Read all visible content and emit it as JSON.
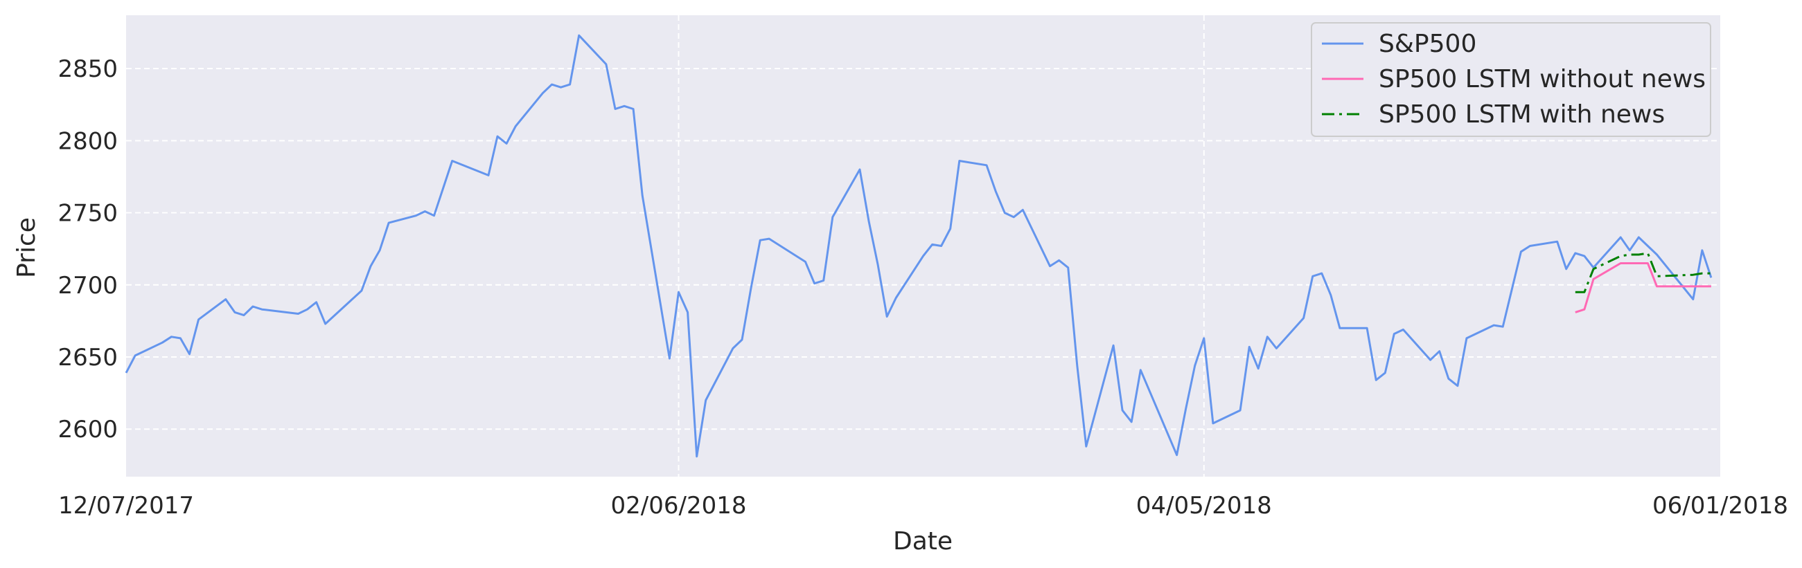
{
  "chart_data": {
    "type": "line",
    "xlabel": "Date",
    "ylabel": "Price",
    "xlim": [
      "12/07/2017",
      "06/01/2018"
    ],
    "x_ticks": [
      "12/07/2017",
      "02/06/2018",
      "04/05/2018",
      "06/01/2018"
    ],
    "ylim": [
      2567,
      2887
    ],
    "y_ticks": [
      2600,
      2650,
      2700,
      2750,
      2800,
      2850
    ],
    "grid": true,
    "legend_position": "top-right",
    "background_color": "#eaeaf2",
    "series": [
      {
        "name": "S&P500",
        "color": "#6495ed",
        "dash": "solid",
        "points": [
          [
            "12/07/2017",
            2639
          ],
          [
            "12/08/2017",
            2651
          ],
          [
            "12/11/2017",
            2660
          ],
          [
            "12/12/2017",
            2664
          ],
          [
            "12/13/2017",
            2663
          ],
          [
            "12/14/2017",
            2652
          ],
          [
            "12/15/2017",
            2676
          ],
          [
            "12/18/2017",
            2690
          ],
          [
            "12/19/2017",
            2681
          ],
          [
            "12/20/2017",
            2679
          ],
          [
            "12/21/2017",
            2685
          ],
          [
            "12/22/2017",
            2683
          ],
          [
            "12/26/2017",
            2680
          ],
          [
            "12/27/2017",
            2683
          ],
          [
            "12/28/2017",
            2688
          ],
          [
            "12/29/2017",
            2673
          ],
          [
            "01/02/2018",
            2696
          ],
          [
            "01/03/2018",
            2713
          ],
          [
            "01/04/2018",
            2724
          ],
          [
            "01/05/2018",
            2743
          ],
          [
            "01/08/2018",
            2748
          ],
          [
            "01/09/2018",
            2751
          ],
          [
            "01/10/2018",
            2748
          ],
          [
            "01/11/2018",
            2767
          ],
          [
            "01/12/2018",
            2786
          ],
          [
            "01/16/2018",
            2776
          ],
          [
            "01/17/2018",
            2803
          ],
          [
            "01/18/2018",
            2798
          ],
          [
            "01/19/2018",
            2810
          ],
          [
            "01/22/2018",
            2833
          ],
          [
            "01/23/2018",
            2839
          ],
          [
            "01/24/2018",
            2837
          ],
          [
            "01/25/2018",
            2839
          ],
          [
            "01/26/2018",
            2873
          ],
          [
            "01/29/2018",
            2853
          ],
          [
            "01/30/2018",
            2822
          ],
          [
            "01/31/2018",
            2824
          ],
          [
            "02/01/2018",
            2822
          ],
          [
            "02/02/2018",
            2762
          ],
          [
            "02/05/2018",
            2649
          ],
          [
            "02/06/2018",
            2695
          ],
          [
            "02/07/2018",
            2681
          ],
          [
            "02/08/2018",
            2581
          ],
          [
            "02/09/2018",
            2620
          ],
          [
            "02/12/2018",
            2656
          ],
          [
            "02/13/2018",
            2662
          ],
          [
            "02/14/2018",
            2698
          ],
          [
            "02/15/2018",
            2731
          ],
          [
            "02/16/2018",
            2732
          ],
          [
            "02/20/2018",
            2716
          ],
          [
            "02/21/2018",
            2701
          ],
          [
            "02/22/2018",
            2703
          ],
          [
            "02/23/2018",
            2747
          ],
          [
            "02/26/2018",
            2780
          ],
          [
            "02/27/2018",
            2744
          ],
          [
            "02/28/2018",
            2714
          ],
          [
            "03/01/2018",
            2678
          ],
          [
            "03/02/2018",
            2691
          ],
          [
            "03/05/2018",
            2720
          ],
          [
            "03/06/2018",
            2728
          ],
          [
            "03/07/2018",
            2727
          ],
          [
            "03/08/2018",
            2739
          ],
          [
            "03/09/2018",
            2786
          ],
          [
            "03/12/2018",
            2783
          ],
          [
            "03/13/2018",
            2765
          ],
          [
            "03/14/2018",
            2750
          ],
          [
            "03/15/2018",
            2747
          ],
          [
            "03/16/2018",
            2752
          ],
          [
            "03/19/2018",
            2713
          ],
          [
            "03/20/2018",
            2717
          ],
          [
            "03/21/2018",
            2712
          ],
          [
            "03/22/2018",
            2644
          ],
          [
            "03/23/2018",
            2588
          ],
          [
            "03/26/2018",
            2658
          ],
          [
            "03/27/2018",
            2613
          ],
          [
            "03/28/2018",
            2605
          ],
          [
            "03/29/2018",
            2641
          ],
          [
            "04/02/2018",
            2582
          ],
          [
            "04/03/2018",
            2614
          ],
          [
            "04/04/2018",
            2644
          ],
          [
            "04/05/2018",
            2663
          ],
          [
            "04/06/2018",
            2604
          ],
          [
            "04/09/2018",
            2613
          ],
          [
            "04/10/2018",
            2657
          ],
          [
            "04/11/2018",
            2642
          ],
          [
            "04/12/2018",
            2664
          ],
          [
            "04/13/2018",
            2656
          ],
          [
            "04/16/2018",
            2677
          ],
          [
            "04/17/2018",
            2706
          ],
          [
            "04/18/2018",
            2708
          ],
          [
            "04/19/2018",
            2693
          ],
          [
            "04/20/2018",
            2670
          ],
          [
            "04/23/2018",
            2670
          ],
          [
            "04/24/2018",
            2634
          ],
          [
            "04/25/2018",
            2639
          ],
          [
            "04/26/2018",
            2666
          ],
          [
            "04/27/2018",
            2669
          ],
          [
            "04/30/2018",
            2648
          ],
          [
            "05/01/2018",
            2654
          ],
          [
            "05/02/2018",
            2635
          ],
          [
            "05/03/2018",
            2630
          ],
          [
            "05/04/2018",
            2663
          ],
          [
            "05/07/2018",
            2672
          ],
          [
            "05/08/2018",
            2671
          ],
          [
            "05/09/2018",
            2697
          ],
          [
            "05/10/2018",
            2723
          ],
          [
            "05/11/2018",
            2727
          ],
          [
            "05/14/2018",
            2730
          ],
          [
            "05/15/2018",
            2711
          ],
          [
            "05/16/2018",
            2722
          ],
          [
            "05/17/2018",
            2720
          ],
          [
            "05/18/2018",
            2712
          ],
          [
            "05/21/2018",
            2733
          ],
          [
            "05/22/2018",
            2724
          ],
          [
            "05/23/2018",
            2733
          ],
          [
            "05/24/2018",
            2727
          ],
          [
            "05/25/2018",
            2721
          ],
          [
            "05/29/2018",
            2690
          ],
          [
            "05/30/2018",
            2724
          ],
          [
            "05/31/2018",
            2705
          ]
        ]
      },
      {
        "name": "SP500 LSTM without news",
        "color": "#ff69b4",
        "dash": "solid",
        "points": [
          [
            "05/16/2018",
            2681
          ],
          [
            "05/17/2018",
            2683
          ],
          [
            "05/18/2018",
            2704
          ],
          [
            "05/21/2018",
            2715
          ],
          [
            "05/22/2018",
            2715
          ],
          [
            "05/23/2018",
            2715
          ],
          [
            "05/24/2018",
            2715
          ],
          [
            "05/25/2018",
            2699
          ],
          [
            "05/29/2018",
            2699
          ],
          [
            "05/30/2018",
            2699
          ],
          [
            "05/31/2018",
            2699
          ]
        ]
      },
      {
        "name": "SP500 LSTM with news",
        "color": "#008000",
        "dash": "dashdot",
        "points": [
          [
            "05/16/2018",
            2695
          ],
          [
            "05/17/2018",
            2695
          ],
          [
            "05/18/2018",
            2711
          ],
          [
            "05/21/2018",
            2720
          ],
          [
            "05/22/2018",
            2721
          ],
          [
            "05/23/2018",
            2721
          ],
          [
            "05/24/2018",
            2722
          ],
          [
            "05/25/2018",
            2706
          ],
          [
            "05/29/2018",
            2707
          ],
          [
            "05/30/2018",
            2708
          ],
          [
            "05/31/2018",
            2708
          ]
        ]
      }
    ]
  }
}
